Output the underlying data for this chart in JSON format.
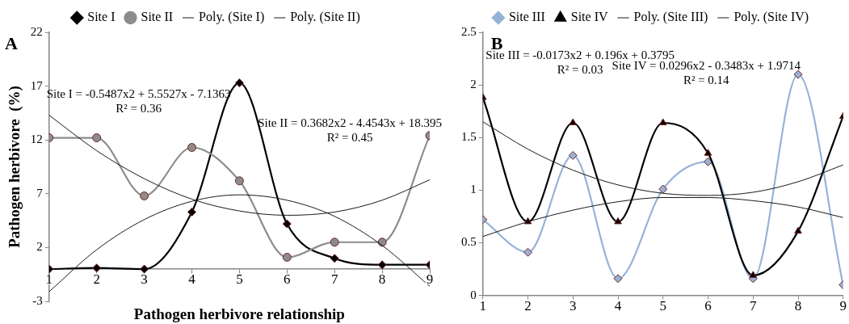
{
  "chart_data": [
    {
      "type": "line",
      "title": "A",
      "xlabel": "Pathogen herbivore relationship",
      "ylabel": "Pathogen herbivore  (%)",
      "x": [
        1,
        2,
        3,
        4,
        5,
        6,
        7,
        8,
        9
      ],
      "xlim": [
        1,
        9
      ],
      "xticks": [
        1,
        2,
        3,
        4,
        5,
        6,
        7,
        8,
        9
      ],
      "ylim": [
        -3,
        22
      ],
      "yticks": [
        -3,
        2,
        7,
        12,
        17,
        22
      ],
      "grid": false,
      "legend": "top",
      "series": [
        {
          "name": "Site I",
          "type": "line",
          "color": "#000000",
          "marker": "diamond",
          "values": [
            0,
            0.1,
            0,
            5.3,
            17.3,
            4.2,
            1.0,
            0.4,
            0.4
          ]
        },
        {
          "name": "Site II",
          "type": "line",
          "color": "#8c8c8c",
          "marker": "circle",
          "values": [
            12.2,
            12.2,
            6.8,
            11.3,
            8.2,
            1.1,
            2.5,
            2.5,
            12.4
          ]
        },
        {
          "name": "Poly. (Site I)",
          "type": "line",
          "color": "#1a1a1a",
          "marker": "none",
          "values": [
            -2.1,
            1.8,
            4.6,
            6.3,
            6.9,
            6.4,
            4.9,
            2.2,
            -1.6
          ]
        },
        {
          "name": "Poly. (Site II)",
          "type": "line",
          "color": "#1a1a1a",
          "marker": "none",
          "values": [
            14.3,
            11.0,
            8.4,
            6.5,
            5.4,
            5.0,
            5.3,
            6.4,
            8.3
          ]
        }
      ],
      "annotations": [
        "Site I = -0.5487x2 + 5.5527x - 7.1363\nR² = 0.36",
        "Site II = 0.3682x2 - 4.4543x + 18.395\nR² = 0.45"
      ]
    },
    {
      "type": "line",
      "title": "B",
      "x": [
        1,
        2,
        3,
        4,
        5,
        6,
        7,
        8,
        9
      ],
      "xlim": [
        1,
        9
      ],
      "xticks": [
        1,
        2,
        3,
        4,
        5,
        6,
        7,
        8,
        9
      ],
      "ylim": [
        0,
        2.5
      ],
      "yticks": [
        0,
        0.5,
        1,
        1.5,
        2,
        2.5
      ],
      "grid": false,
      "legend": "top",
      "series": [
        {
          "name": "Site III",
          "type": "line",
          "color": "#95b3d7",
          "marker": "diamond",
          "values": [
            0.72,
            0.41,
            1.33,
            0.16,
            1.01,
            1.27,
            0.16,
            2.1,
            0.1
          ]
        },
        {
          "name": "Site IV",
          "type": "line",
          "color": "#000000",
          "marker": "triangle",
          "values": [
            1.88,
            0.7,
            1.64,
            0.7,
            1.64,
            1.35,
            0.19,
            0.61,
            1.7
          ]
        },
        {
          "name": "Poly. (Site III)",
          "type": "line",
          "color": "#1a1a1a",
          "marker": "none",
          "values": [
            0.56,
            0.7,
            0.81,
            0.89,
            0.93,
            0.93,
            0.9,
            0.84,
            0.74
          ]
        },
        {
          "name": "Poly. (Site IV)",
          "type": "line",
          "color": "#1a1a1a",
          "marker": "none",
          "values": [
            1.65,
            1.39,
            1.19,
            1.05,
            0.97,
            0.95,
            0.98,
            1.08,
            1.24
          ]
        }
      ],
      "annotations": [
        "Site III = -0.0173x2 + 0.196x + 0.3795\nR² = 0.03",
        "Site IV = 0.0296x2 - 0.3483x + 1.9714\nR² = 0.14"
      ]
    }
  ]
}
